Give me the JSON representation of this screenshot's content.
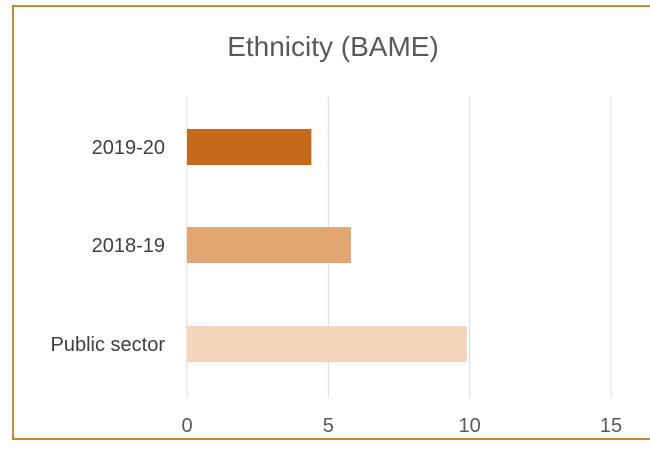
{
  "chart_data": {
    "type": "bar",
    "orientation": "horizontal",
    "title": "Ethnicity (BAME)",
    "categories": [
      "2019-20",
      "2018-19",
      "Public sector"
    ],
    "values": [
      4.4,
      5.8,
      9.9
    ],
    "bar_colors": [
      "#c5691a",
      "#e3a673",
      "#f2d5bb"
    ],
    "xlim": [
      0,
      15
    ],
    "xticks": [
      "0",
      "5",
      "10",
      "15"
    ],
    "xlabel": "",
    "ylabel": "",
    "grid": "vertical",
    "legend": "none"
  },
  "style": {
    "border_color": "#c8872f",
    "grid_color": "#d9d9d9"
  }
}
